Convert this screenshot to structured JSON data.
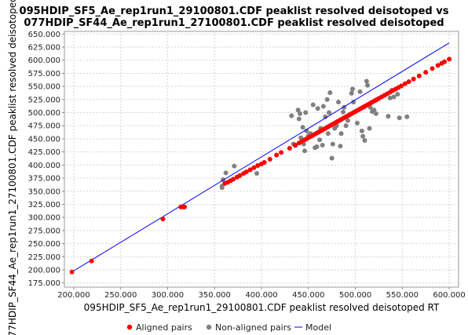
{
  "chart_data": {
    "type": "scatter",
    "title_line1": "095HDIP_SF5_Ae_rep1run1_29100801.CDF peaklist resolved deisotoped vs",
    "title_line2": "077HDIP_SF44_Ae_rep1run1_27100801.CDF peaklist resolved deisotoped",
    "xlabel": "095HDIP_SF5_Ae_rep1run1_29100801.CDF peaklist resolved deisotoped RT",
    "ylabel": "77HDIP_SF44_Ae_rep1run1_27100801.CDF peaklist resolved deisotoped RT",
    "xlim": [
      190000,
      610000
    ],
    "ylim": [
      167000,
      655000
    ],
    "x_ticks": [
      200000,
      250000,
      300000,
      350000,
      400000,
      450000,
      500000,
      550000,
      600000
    ],
    "x_tick_labels": [
      "200.000",
      "250.000",
      "300.000",
      "350.000",
      "400.000",
      "450.000",
      "500.000",
      "550.000",
      "600.000"
    ],
    "y_ticks": [
      175000,
      200000,
      225000,
      250000,
      275000,
      300000,
      325000,
      350000,
      375000,
      400000,
      425000,
      450000,
      475000,
      500000,
      525000,
      550000,
      575000,
      600000,
      625000,
      650000
    ],
    "y_tick_labels": [
      "175.000",
      "200.000",
      "225.000",
      "250.000",
      "275.000",
      "300.000",
      "325.000",
      "350.000",
      "375.000",
      "400.000",
      "425.000",
      "450.000",
      "475.000",
      "500.000",
      "525.000",
      "550.000",
      "575.000",
      "600.000",
      "625.000",
      "650.000"
    ],
    "grid": true,
    "legend_position": "bottom",
    "series": [
      {
        "name": "Aligned pairs",
        "kind": "points",
        "color": "#ff0000",
        "x": [
          198000,
          219000,
          295000,
          314000,
          316000,
          318000,
          361000,
          364000,
          367000,
          370000,
          374000,
          377000,
          381000,
          384000,
          388000,
          392000,
          396000,
          400000,
          403000,
          409000,
          416000,
          421000,
          430000,
          436000,
          440000,
          443000,
          446000,
          448000,
          451000,
          453000,
          455000,
          457000,
          459000,
          461000,
          463000,
          465000,
          467000,
          469000,
          471000,
          473000,
          475000,
          477000,
          479000,
          481000,
          483000,
          485000,
          487000,
          489000,
          491000,
          493000,
          495000,
          497000,
          499000,
          501000,
          503000,
          505000,
          507000,
          509000,
          511000,
          513000,
          515000,
          517000,
          519000,
          521000,
          523000,
          525000,
          528000,
          531000,
          534000,
          537000,
          540000,
          543000,
          546000,
          549000,
          553000,
          557000,
          562000,
          568000,
          575000,
          582000,
          588000,
          592000,
          595000,
          600000
        ],
        "y": [
          196000,
          217000,
          297000,
          320000,
          320000,
          320000,
          365000,
          367000,
          370000,
          373000,
          377000,
          380000,
          384000,
          387000,
          391000,
          395000,
          399000,
          402000,
          405000,
          411000,
          419000,
          424000,
          432000,
          438000,
          442000,
          445000,
          448000,
          450000,
          453000,
          455000,
          457000,
          459000,
          461000,
          463000,
          465000,
          467000,
          469000,
          471000,
          473000,
          475000,
          477000,
          479000,
          481000,
          483000,
          485000,
          487000,
          489000,
          491000,
          493000,
          495000,
          497000,
          499000,
          501000,
          503000,
          505000,
          507000,
          509000,
          511000,
          513000,
          515000,
          517000,
          519000,
          521000,
          523000,
          525000,
          527000,
          530000,
          533000,
          536000,
          539000,
          542000,
          545000,
          548000,
          551000,
          555000,
          559000,
          564000,
          570000,
          577000,
          584000,
          590000,
          594000,
          597000,
          602000
        ]
      },
      {
        "name": "Non-aligned pairs",
        "kind": "points",
        "color": "#808080",
        "x": [
          358000,
          358000,
          359000,
          362000,
          371000,
          395000,
          432000,
          434000,
          436000,
          439000,
          440000,
          441000,
          442000,
          443000,
          444000,
          445000,
          446000,
          447000,
          448000,
          450000,
          452000,
          455000,
          457000,
          459000,
          460000,
          462000,
          463000,
          465000,
          466000,
          468000,
          470000,
          471000,
          472000,
          473000,
          475000,
          476000,
          478000,
          480000,
          482000,
          484000,
          485000,
          487000,
          488000,
          490000,
          492000,
          494000,
          496000,
          497000,
          498000,
          500000,
          502000,
          505000,
          507000,
          508000,
          510000,
          512000,
          513000,
          515000,
          516000,
          518000,
          520000,
          522000,
          535000,
          537000,
          539000,
          541000,
          545000,
          547000,
          555000
        ],
        "y": [
          357000,
          360000,
          372000,
          385000,
          398000,
          384000,
          494000,
          440000,
          437000,
          505000,
          488000,
          498000,
          452000,
          445000,
          472000,
          440000,
          427000,
          500000,
          465000,
          456000,
          460000,
          515000,
          433000,
          435000,
          508000,
          448000,
          470000,
          438000,
          512000,
          492000,
          525000,
          460000,
          500000,
          538000,
          413000,
          440000,
          470000,
          475000,
          520000,
          436000,
          460000,
          501000,
          510000,
          475000,
          485000,
          496000,
          537000,
          545000,
          520000,
          502000,
          480000,
          540000,
          465000,
          455000,
          447000,
          560000,
          552000,
          470000,
          510000,
          502000,
          505000,
          498000,
          493000,
          528000,
          543000,
          530000,
          535000,
          490000,
          492000
        ]
      },
      {
        "name": "Model",
        "kind": "line",
        "color": "#0000ff",
        "x": [
          198000,
          600000
        ],
        "y": [
          196000,
          633000
        ]
      }
    ]
  }
}
